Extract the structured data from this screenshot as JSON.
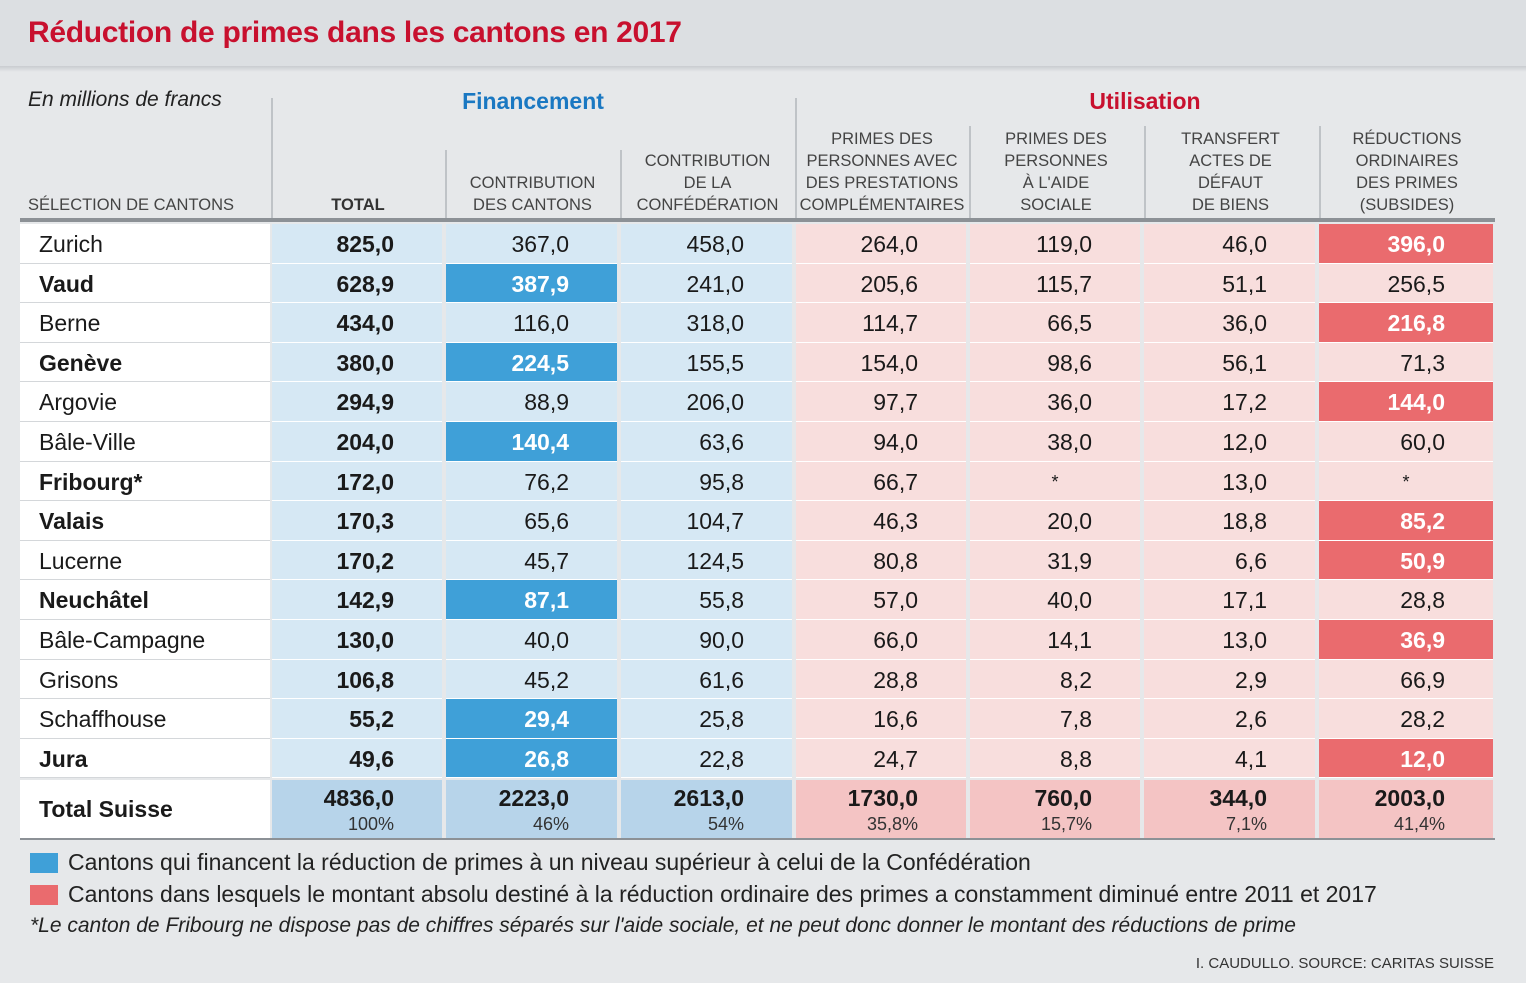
{
  "title": "Réduction de primes dans les cantons en 2017",
  "unit_note": "En millions de francs",
  "group_financement": "Financement",
  "group_utilisation": "Utilisation",
  "colors": {
    "title": "#c8102e",
    "financement": "#1a78c2",
    "highlight_blue": "#3fa0d8",
    "highlight_red": "#ea6b6e",
    "fin_bg": "#d6e8f4",
    "util_bg": "#f8dedd"
  },
  "chart_data": {
    "type": "table",
    "title": "Réduction de primes dans les cantons en 2017",
    "columns": [
      "SÉLECTION DE CANTONS",
      "TOTAL",
      "CONTRIBUTION DES CANTONS",
      "CONTRIBUTION DE LA CONFÉDÉRATION",
      "PRIMES DES PERSONNES AVEC DES PRESTATIONS COMPLÉMENTAIRES",
      "PRIMES DES PERSONNES À L'AIDE SOCIALE",
      "TRANSFERT ACTES DE DÉFAUT DE BIENS",
      "RÉDUCTIONS ORDINAIRES DES PRIMES (SUBSIDES)"
    ],
    "column_headers": [
      [
        "SÉLECTION DE CANTONS"
      ],
      [
        "TOTAL"
      ],
      [
        "CONTRIBUTION",
        "DES CANTONS"
      ],
      [
        "CONTRIBUTION",
        "DE LA",
        "CONFÉDÉRATION"
      ],
      [
        "PRIMES DES",
        "PERSONNES AVEC",
        "DES PRESTATIONS",
        "COMPLÉMENTAIRES"
      ],
      [
        "PRIMES DES",
        "PERSONNES",
        "À L'AIDE",
        "SOCIALE"
      ],
      [
        "TRANSFERT",
        "ACTES DE",
        "DÉFAUT",
        "DE BIENS"
      ],
      [
        "RÉDUCTIONS",
        "ORDINAIRES",
        "DES PRIMES",
        "(SUBSIDES)"
      ]
    ],
    "rows": [
      {
        "canton": "Zurich",
        "bold": false,
        "total": "825,0",
        "cantons": "367,0",
        "confederation": "458,0",
        "pc": "264,0",
        "aide_sociale": "119,0",
        "defaut_biens": "46,0",
        "reductions": "396,0",
        "hi_cantons": false,
        "hi_reductions": true
      },
      {
        "canton": "Vaud",
        "bold": true,
        "total": "628,9",
        "cantons": "387,9",
        "confederation": "241,0",
        "pc": "205,6",
        "aide_sociale": "115,7",
        "defaut_biens": "51,1",
        "reductions": "256,5",
        "hi_cantons": true,
        "hi_reductions": false
      },
      {
        "canton": "Berne",
        "bold": false,
        "total": "434,0",
        "cantons": "116,0",
        "confederation": "318,0",
        "pc": "114,7",
        "aide_sociale": "66,5",
        "defaut_biens": "36,0",
        "reductions": "216,8",
        "hi_cantons": false,
        "hi_reductions": true
      },
      {
        "canton": "Genève",
        "bold": true,
        "total": "380,0",
        "cantons": "224,5",
        "confederation": "155,5",
        "pc": "154,0",
        "aide_sociale": "98,6",
        "defaut_biens": "56,1",
        "reductions": "71,3",
        "hi_cantons": true,
        "hi_reductions": false
      },
      {
        "canton": "Argovie",
        "bold": false,
        "total": "294,9",
        "cantons": "88,9",
        "confederation": "206,0",
        "pc": "97,7",
        "aide_sociale": "36,0",
        "defaut_biens": "17,2",
        "reductions": "144,0",
        "hi_cantons": false,
        "hi_reductions": true
      },
      {
        "canton": "Bâle-Ville",
        "bold": false,
        "total": "204,0",
        "cantons": "140,4",
        "confederation": "63,6",
        "pc": "94,0",
        "aide_sociale": "38,0",
        "defaut_biens": "12,0",
        "reductions": "60,0",
        "hi_cantons": true,
        "hi_reductions": false
      },
      {
        "canton": "Fribourg*",
        "bold": true,
        "total": "172,0",
        "cantons": "76,2",
        "confederation": "95,8",
        "pc": "66,7",
        "aide_sociale": "*",
        "defaut_biens": "13,0",
        "reductions": "*",
        "hi_cantons": false,
        "hi_reductions": false
      },
      {
        "canton": "Valais",
        "bold": true,
        "total": "170,3",
        "cantons": "65,6",
        "confederation": "104,7",
        "pc": "46,3",
        "aide_sociale": "20,0",
        "defaut_biens": "18,8",
        "reductions": "85,2",
        "hi_cantons": false,
        "hi_reductions": true
      },
      {
        "canton": "Lucerne",
        "bold": false,
        "total": "170,2",
        "cantons": "45,7",
        "confederation": "124,5",
        "pc": "80,8",
        "aide_sociale": "31,9",
        "defaut_biens": "6,6",
        "reductions": "50,9",
        "hi_cantons": false,
        "hi_reductions": true
      },
      {
        "canton": "Neuchâtel",
        "bold": true,
        "total": "142,9",
        "cantons": "87,1",
        "confederation": "55,8",
        "pc": "57,0",
        "aide_sociale": "40,0",
        "defaut_biens": "17,1",
        "reductions": "28,8",
        "hi_cantons": true,
        "hi_reductions": false
      },
      {
        "canton": "Bâle-Campagne",
        "bold": false,
        "total": "130,0",
        "cantons": "40,0",
        "confederation": "90,0",
        "pc": "66,0",
        "aide_sociale": "14,1",
        "defaut_biens": "13,0",
        "reductions": "36,9",
        "hi_cantons": false,
        "hi_reductions": true
      },
      {
        "canton": "Grisons",
        "bold": false,
        "total": "106,8",
        "cantons": "45,2",
        "confederation": "61,6",
        "pc": "28,8",
        "aide_sociale": "8,2",
        "defaut_biens": "2,9",
        "reductions": "66,9",
        "hi_cantons": false,
        "hi_reductions": false
      },
      {
        "canton": "Schaffhouse",
        "bold": false,
        "total": "55,2",
        "cantons": "29,4",
        "confederation": "25,8",
        "pc": "16,6",
        "aide_sociale": "7,8",
        "defaut_biens": "2,6",
        "reductions": "28,2",
        "hi_cantons": true,
        "hi_reductions": false
      },
      {
        "canton": "Jura",
        "bold": true,
        "total": "49,6",
        "cantons": "26,8",
        "confederation": "22,8",
        "pc": "24,7",
        "aide_sociale": "8,8",
        "defaut_biens": "4,1",
        "reductions": "12,0",
        "hi_cantons": true,
        "hi_reductions": true
      }
    ],
    "totals": {
      "label": "Total Suisse",
      "total": "4836,0",
      "total_pct": "100%",
      "cantons": "2223,0",
      "cantons_pct": "46%",
      "confederation": "2613,0",
      "confederation_pct": "54%",
      "pc": "1730,0",
      "pc_pct": "35,8%",
      "aide_sociale": "760,0",
      "aide_sociale_pct": "15,7%",
      "defaut_biens": "344,0",
      "defaut_biens_pct": "7,1%",
      "reductions": "2003,0",
      "reductions_pct": "41,4%"
    }
  },
  "legend": {
    "blue": "Cantons qui financent la réduction de primes à un niveau supérieur à celui de la Confédération",
    "red": "Cantons dans lesquels le montant absolu destiné à la réduction ordinaire des primes a constamment diminué entre 2011 et 2017"
  },
  "footnote": "*Le canton de Fribourg ne dispose pas de chiffres séparés sur l'aide sociale, et ne peut donc donner le montant des réductions de prime",
  "source": "I. CAUDULLO. SOURCE: CARITAS SUISSE"
}
